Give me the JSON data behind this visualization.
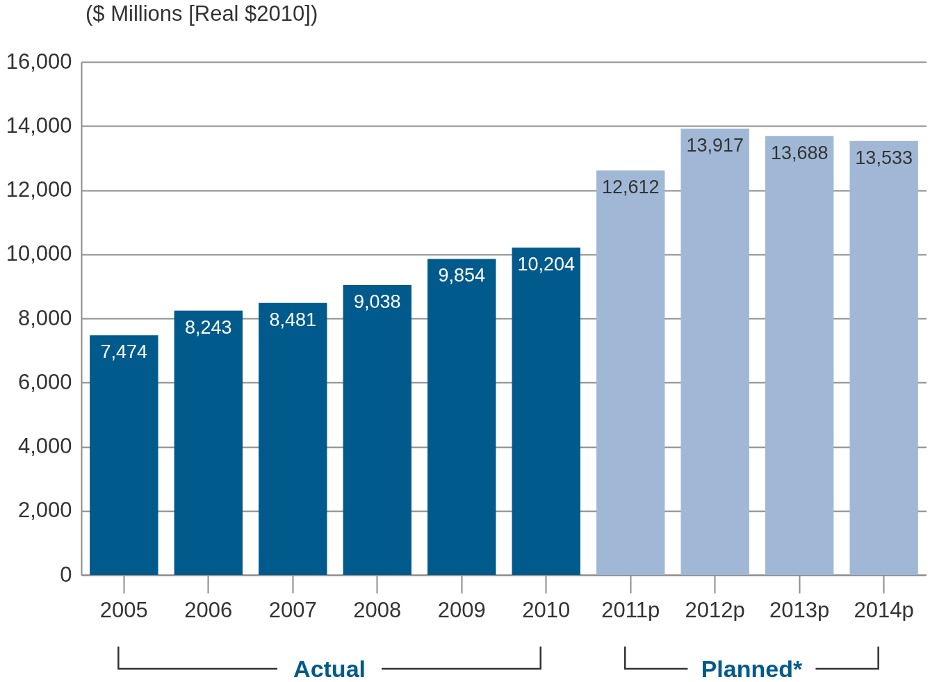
{
  "chart_data": {
    "type": "bar",
    "title": "($ Millions [Real $2010])",
    "categories": [
      "2005",
      "2006",
      "2007",
      "2008",
      "2009",
      "2010",
      "2011p",
      "2012p",
      "2013p",
      "2014p"
    ],
    "values": [
      7474,
      8243,
      8481,
      9038,
      9854,
      10204,
      12612,
      13917,
      13688,
      13533
    ],
    "colors": [
      "#005a8c",
      "#005a8c",
      "#005a8c",
      "#005a8c",
      "#005a8c",
      "#005a8c",
      "#a0b8d5",
      "#a0b8d5",
      "#a0b8d5",
      "#a0b8d5"
    ],
    "value_labels": [
      "7,474",
      "8,243",
      "8,481",
      "9,038",
      "9,854",
      "10,204",
      "12,612",
      "13,917",
      "13,688",
      "13,533"
    ],
    "ylim": [
      0,
      16000
    ],
    "yticks": [
      0,
      {
        "value": 2000,
        "label": "2,000"
      },
      {
        "value": 4000,
        "label": "4,000"
      },
      {
        "value": 6000,
        "label": "6,000"
      },
      {
        "value": 8000,
        "label": "8,000"
      },
      {
        "value": 10000,
        "label": "10,000"
      },
      {
        "value": 12000,
        "label": "12,000"
      },
      {
        "value": 14000,
        "label": "14,000"
      },
      {
        "value": 16000,
        "label": "16,000"
      }
    ],
    "grid": "y",
    "annotations": [
      "Actual",
      "Planned*"
    ]
  }
}
